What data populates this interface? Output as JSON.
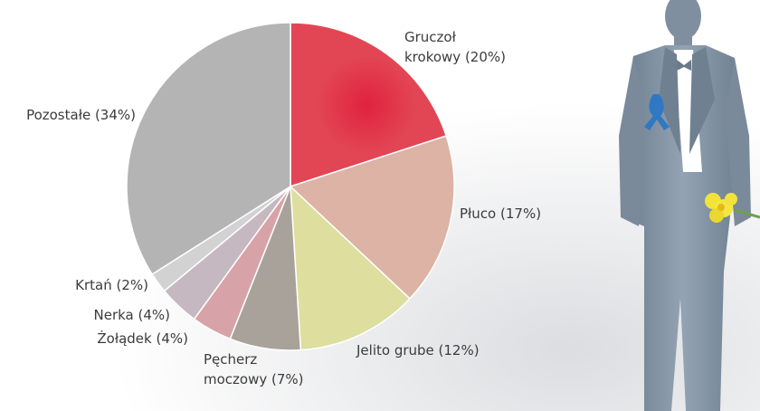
{
  "chart_data": {
    "type": "pie",
    "slices": [
      {
        "label": "Gruczoł krokowy (20%)",
        "lines": [
          "Gruczoł",
          "krokowy (20%)"
        ],
        "value": 20,
        "color": "#e24655"
      },
      {
        "label": "Płuco (17%)",
        "lines": [
          "Płuco (17%)"
        ],
        "value": 17,
        "color": "#dcb3a4"
      },
      {
        "label": "Jelito grube (12%)",
        "lines": [
          "Jelito grube (12%)"
        ],
        "value": 12,
        "color": "#dede9e"
      },
      {
        "label": "Pęcherz moczowy (7%)",
        "lines": [
          "Pęcherz",
          "moczowy (7%)"
        ],
        "value": 7,
        "color": "#a8a29a"
      },
      {
        "label": "Żołądek (4%)",
        "lines": [
          "Żołądek (4%)"
        ],
        "value": 4,
        "color": "#d7a3a8"
      },
      {
        "label": "Nerka (4%)",
        "lines": [
          "Nerka (4%)"
        ],
        "value": 4,
        "color": "#c6b8c0"
      },
      {
        "label": "Krtań (2%)",
        "lines": [
          "Krtań (2%)"
        ],
        "value": 2,
        "color": "#d2d2d2"
      },
      {
        "label": "Pozostałe (34%)",
        "lines": [
          "Pozostałe (34%)"
        ],
        "value": 34,
        "color": "#b4b4b4"
      }
    ],
    "start_angle_deg": 0,
    "direction": "clockwise"
  },
  "illustration": {
    "subject": "man-in-suit",
    "suit_color": "#8898a8",
    "ribbon_color": "#2f78c4",
    "flower_color": "#f2e23a"
  }
}
